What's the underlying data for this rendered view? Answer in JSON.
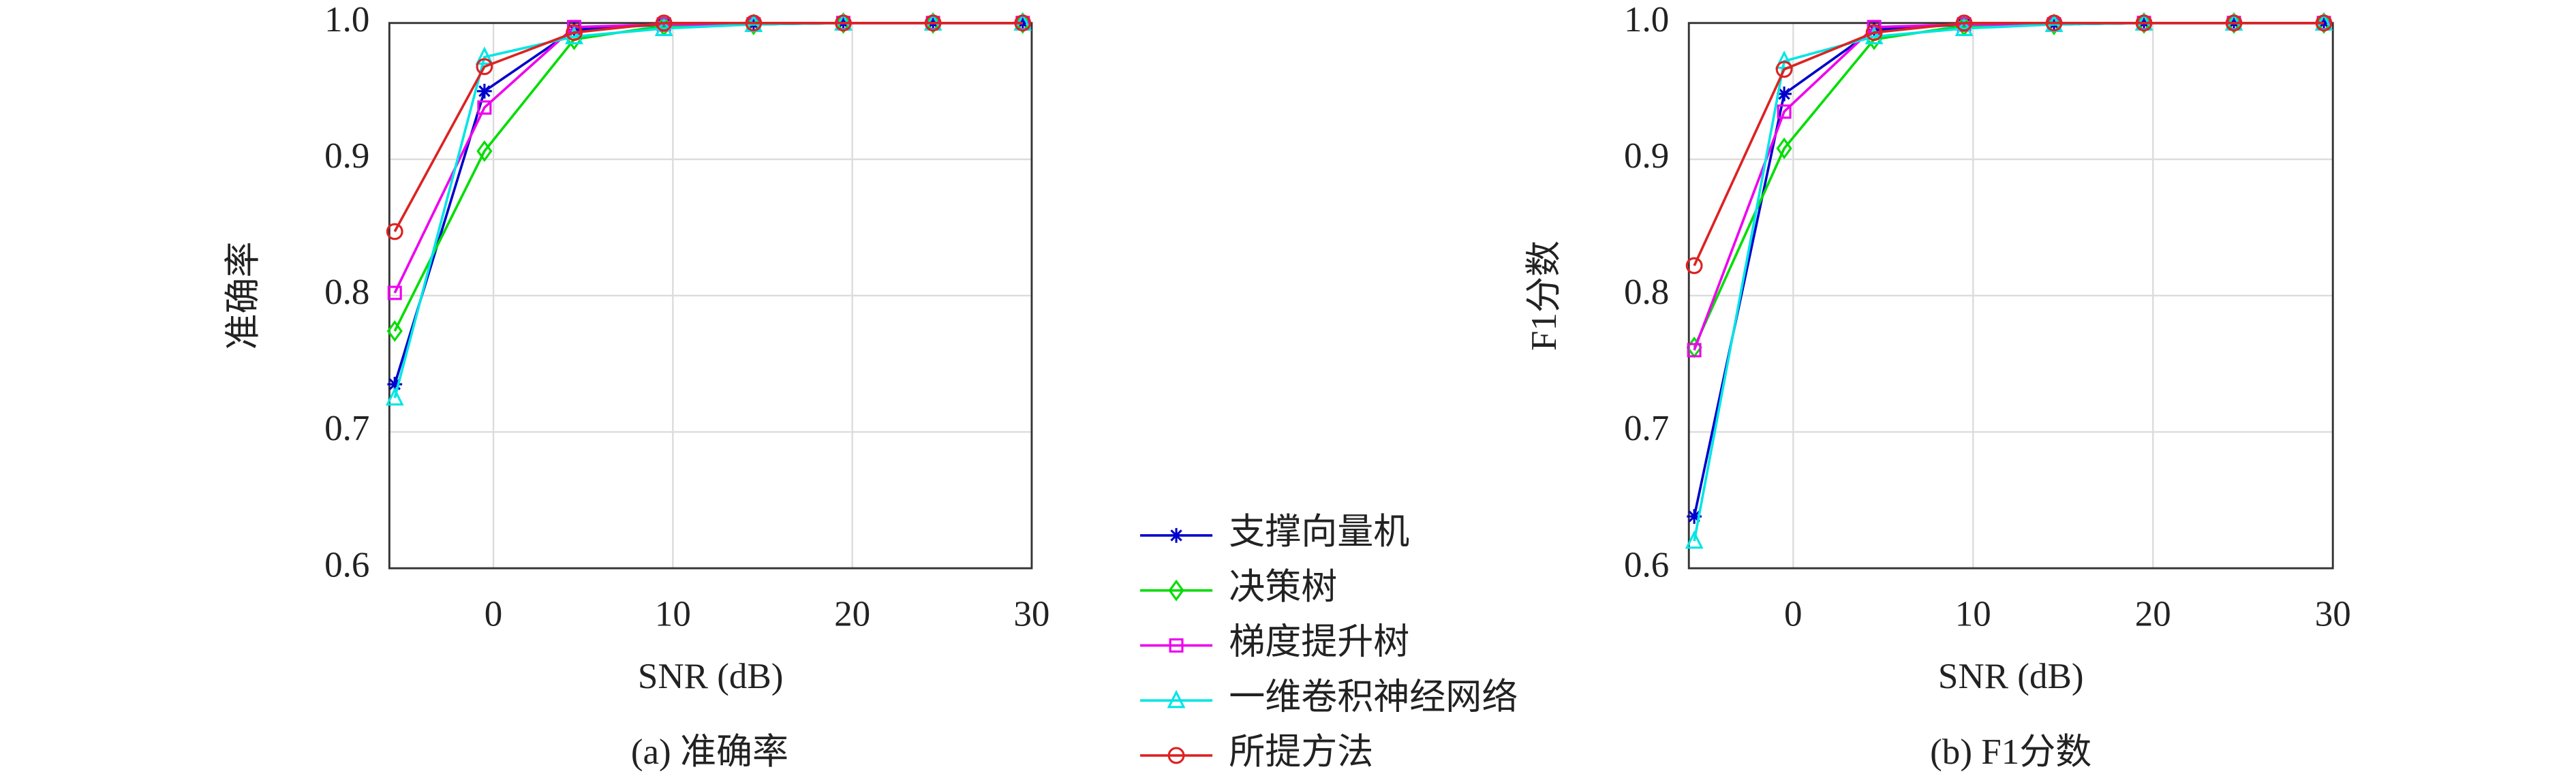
{
  "chart_data": [
    {
      "type": "line",
      "title": "(a) 准确率",
      "xlabel": "SNR (dB)",
      "ylabel": "准确率",
      "x": [
        -5.5,
        -0.5,
        4.5,
        9.5,
        14.5,
        19.5,
        24.5,
        29.5
      ],
      "xlim": [
        -5.8,
        30
      ],
      "xticks": [
        0,
        10,
        20,
        30
      ],
      "ylim": [
        0.6,
        1.0
      ],
      "yticks": [
        0.6,
        0.7,
        0.8,
        0.9,
        {
          "value": 1.0,
          "label": "1.0"
        }
      ],
      "grid": true,
      "series": [
        {
          "name": "支撑向量机",
          "color": "#0000cc",
          "marker": "star",
          "values": [
            0.735,
            0.95,
            0.995,
            0.999,
            0.999,
            1.0,
            1.0,
            1.0
          ]
        },
        {
          "name": "决策树",
          "color": "#00dd00",
          "marker": "diamond",
          "values": [
            0.774,
            0.906,
            0.988,
            0.998,
            0.999,
            1.0,
            1.0,
            1.0
          ]
        },
        {
          "name": "梯度提升树",
          "color": "#ee00ee",
          "marker": "square",
          "values": [
            0.802,
            0.938,
            0.997,
            0.999,
            0.999,
            1.0,
            1.0,
            1.0
          ]
        },
        {
          "name": "一维卷积神经网络",
          "color": "#00e5e5",
          "marker": "triangle",
          "values": [
            0.725,
            0.975,
            0.99,
            0.996,
            0.999,
            1.0,
            1.0,
            1.0
          ]
        },
        {
          "name": "所提方法",
          "color": "#dd2222",
          "marker": "circle",
          "values": [
            0.847,
            0.968,
            0.993,
            1.0,
            1.0,
            1.0,
            1.0,
            1.0
          ]
        }
      ]
    },
    {
      "type": "line",
      "title": "(b) F1分数",
      "xlabel": "SNR (dB)",
      "ylabel": "F1分数",
      "x": [
        -5.5,
        -0.5,
        4.5,
        9.5,
        14.5,
        19.5,
        24.5,
        29.5
      ],
      "xlim": [
        -5.8,
        30
      ],
      "xticks": [
        0,
        10,
        20,
        30
      ],
      "ylim": [
        0.6,
        1.0
      ],
      "yticks": [
        0.6,
        0.7,
        0.8,
        0.9,
        {
          "value": 1.0,
          "label": "1.0"
        }
      ],
      "grid": true,
      "series": [
        {
          "color": "#0000cc",
          "marker": "star",
          "values": [
            0.638,
            0.948,
            0.995,
            0.999,
            0.999,
            1.0,
            1.0,
            1.0
          ]
        },
        {
          "color": "#00dd00",
          "marker": "diamond",
          "values": [
            0.762,
            0.908,
            0.988,
            0.998,
            0.999,
            1.0,
            1.0,
            1.0
          ]
        },
        {
          "color": "#ee00ee",
          "marker": "square",
          "values": [
            0.76,
            0.935,
            0.997,
            0.999,
            0.999,
            1.0,
            1.0,
            1.0
          ]
        },
        {
          "color": "#00e5e5",
          "marker": "triangle",
          "values": [
            0.62,
            0.972,
            0.99,
            0.996,
            0.999,
            1.0,
            1.0,
            1.0
          ]
        },
        {
          "color": "#dd2222",
          "marker": "circle",
          "values": [
            0.822,
            0.966,
            0.993,
            1.0,
            1.0,
            1.0,
            1.0,
            1.0
          ]
        }
      ]
    }
  ]
}
